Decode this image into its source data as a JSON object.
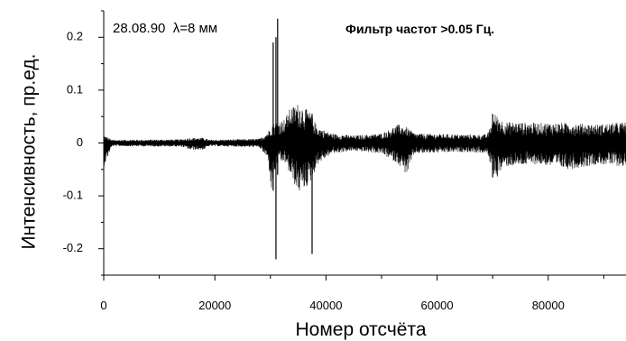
{
  "chart_data": {
    "type": "line",
    "annotations": {
      "date_wavelength": "28.08.90  λ=8 мм",
      "filter": "Фильтр частот >0.05 Гц."
    },
    "xlabel": "Номер отсчёта",
    "ylabel": "Интенсивность, пр.ед.",
    "xlim": [
      0,
      94000
    ],
    "ylim": [
      -0.25,
      0.25
    ],
    "x_ticks": [
      0,
      20000,
      40000,
      60000,
      80000
    ],
    "x_tick_labels": [
      "0",
      "20000",
      "40000",
      "60000",
      "80000"
    ],
    "y_ticks": [
      0.2,
      0.1,
      0,
      -0.1,
      -0.2
    ],
    "y_tick_labels": [
      "0.2",
      "0.1",
      "0",
      "-0.1",
      "-0.2"
    ],
    "grid": false,
    "series": [
      {
        "color": "#000000",
        "envelope": [
          {
            "x": 0,
            "min": -0.045,
            "max": 0.015
          },
          {
            "x": 1500,
            "min": -0.006,
            "max": 0.006
          },
          {
            "x": 14000,
            "min": -0.007,
            "max": 0.007
          },
          {
            "x": 15500,
            "min": -0.013,
            "max": 0.01
          },
          {
            "x": 18000,
            "min": -0.013,
            "max": 0.01
          },
          {
            "x": 19000,
            "min": -0.006,
            "max": 0.006
          },
          {
            "x": 28000,
            "min": -0.008,
            "max": 0.008
          },
          {
            "x": 29500,
            "min": -0.03,
            "max": 0.02
          },
          {
            "x": 30200,
            "min": -0.09,
            "max": 0.035
          },
          {
            "x": 31000,
            "min": -0.045,
            "max": 0.04
          },
          {
            "x": 32500,
            "min": -0.035,
            "max": 0.045
          },
          {
            "x": 33500,
            "min": -0.06,
            "max": 0.065
          },
          {
            "x": 35000,
            "min": -0.095,
            "max": 0.075
          },
          {
            "x": 37000,
            "min": -0.08,
            "max": 0.06
          },
          {
            "x": 38500,
            "min": -0.04,
            "max": 0.03
          },
          {
            "x": 41000,
            "min": -0.02,
            "max": 0.018
          },
          {
            "x": 45000,
            "min": -0.015,
            "max": 0.014
          },
          {
            "x": 50000,
            "min": -0.02,
            "max": 0.018
          },
          {
            "x": 53000,
            "min": -0.04,
            "max": 0.035
          },
          {
            "x": 54500,
            "min": -0.06,
            "max": 0.03
          },
          {
            "x": 56000,
            "min": -0.02,
            "max": 0.018
          },
          {
            "x": 65000,
            "min": -0.017,
            "max": 0.016
          },
          {
            "x": 69000,
            "min": -0.02,
            "max": 0.016
          },
          {
            "x": 70500,
            "min": -0.07,
            "max": 0.055
          },
          {
            "x": 72000,
            "min": -0.045,
            "max": 0.04
          },
          {
            "x": 78000,
            "min": -0.04,
            "max": 0.038
          },
          {
            "x": 84000,
            "min": -0.05,
            "max": 0.038
          },
          {
            "x": 89000,
            "min": -0.04,
            "max": 0.035
          },
          {
            "x": 94000,
            "min": -0.045,
            "max": 0.04
          }
        ],
        "spikes": [
          {
            "x": 30500,
            "min": -0.09,
            "max": 0.19
          },
          {
            "x": 31000,
            "min": -0.22,
            "max": 0.2
          },
          {
            "x": 31300,
            "min": -0.06,
            "max": 0.235
          },
          {
            "x": 37500,
            "min": -0.21,
            "max": 0.055
          },
          {
            "x": 70000,
            "min": -0.065,
            "max": 0.055
          }
        ]
      }
    ]
  }
}
